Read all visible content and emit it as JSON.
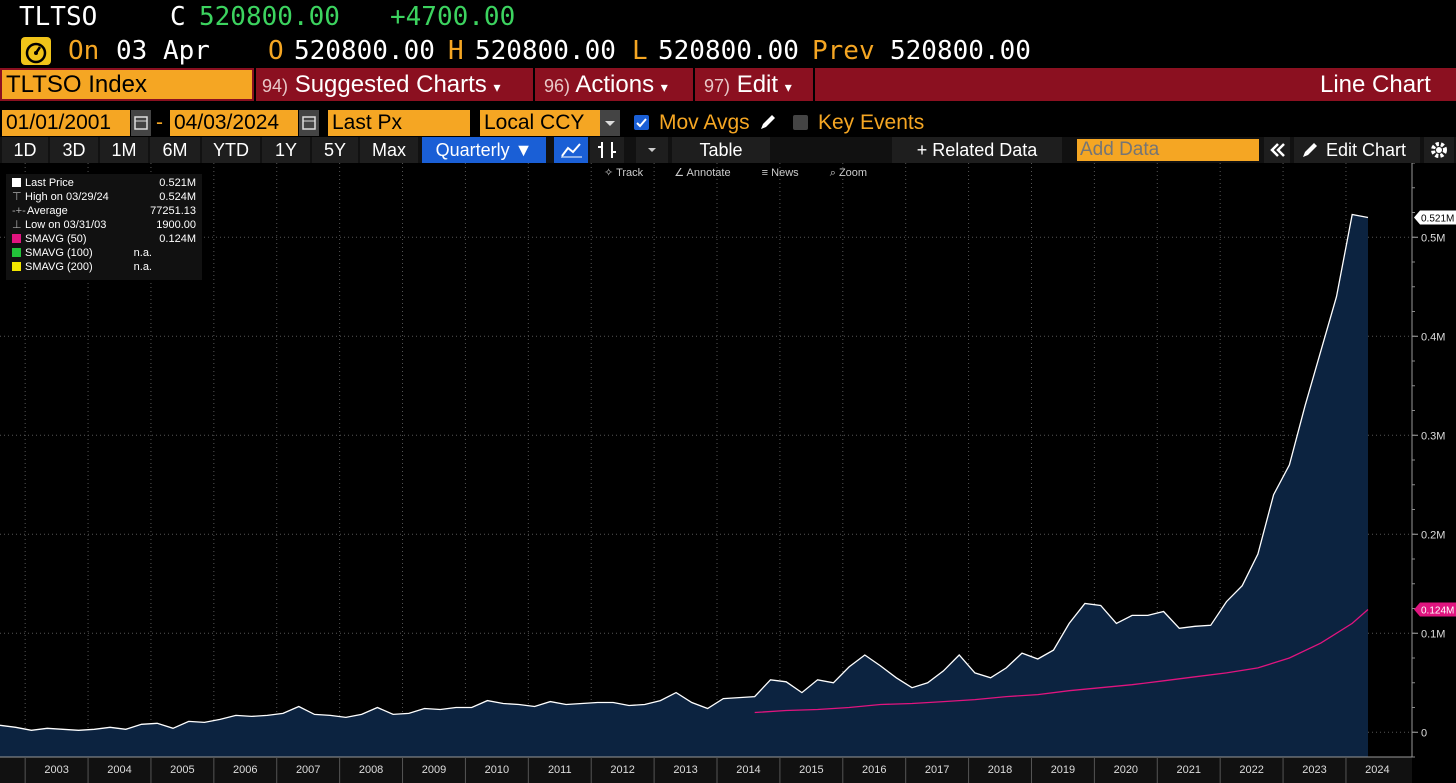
{
  "quote": {
    "ticker": "TLTSO",
    "close_label": "C",
    "close_value": "520800.00",
    "change": "+4700.00",
    "on_label": "On",
    "date": "03 Apr",
    "open_label": "O",
    "open_value": "520800.00",
    "high_label": "H",
    "high_value": "520800.00",
    "low_label": "L",
    "low_value": "520800.00",
    "prev_label": "Prev",
    "prev_value": "520800.00"
  },
  "menubar": {
    "security": "TLTSO Index",
    "suggested_num": "94)",
    "suggested": "Suggested Charts",
    "actions_num": "96)",
    "actions": "Actions",
    "edit_num": "97)",
    "edit": "Edit",
    "chart_type": "Line Chart"
  },
  "controls": {
    "start_date": "01/01/2001",
    "end_date": "04/03/2024",
    "field": "Last Px",
    "currency": "Local CCY",
    "mov_avgs": "Mov Avgs",
    "key_events": "Key Events"
  },
  "toolbar": {
    "periods": [
      "1D",
      "3D",
      "1M",
      "6M",
      "YTD",
      "1Y",
      "5Y",
      "Max"
    ],
    "frequency": "Quarterly ▼",
    "table": "Table",
    "related": "+ Related Data",
    "add_data_placeholder": "Add Data",
    "edit_chart": "Edit Chart"
  },
  "mini_toolbar": [
    "Track",
    "Annotate",
    "News",
    "Zoom"
  ],
  "legend": [
    {
      "label": "Last Price",
      "value": "0.521M",
      "color": "#ffffff"
    },
    {
      "label": "High on 03/29/24",
      "value": "0.524M",
      "color": ""
    },
    {
      "label": "Average",
      "value": "77251.13",
      "color": ""
    },
    {
      "label": "Low on 03/31/03",
      "value": "1900.00",
      "color": ""
    },
    {
      "label": "SMAVG (50)",
      "value": "0.124M",
      "color": "#e0147f"
    },
    {
      "label": "SMAVG (100)",
      "value": "n.a.",
      "color": "#22c33a"
    },
    {
      "label": "SMAVG (200)",
      "value": "n.a.",
      "color": "#f2e600"
    }
  ],
  "chart_data": {
    "type": "area",
    "x_start": 2002.6,
    "x_end": 2025.05,
    "ylim": [
      -25000,
      575000
    ],
    "yticks": [
      0,
      100000,
      200000,
      300000,
      400000,
      500000
    ],
    "ytick_labels": [
      "0",
      "0.1M",
      "0.2M",
      "0.3M",
      "0.4M",
      "0.5M"
    ],
    "xticks": [
      "2003",
      "2004",
      "2005",
      "2006",
      "2007",
      "2008",
      "2009",
      "2010",
      "2011",
      "2012",
      "2013",
      "2014",
      "2015",
      "2016",
      "2017",
      "2018",
      "2019",
      "2020",
      "2021",
      "2022",
      "2023",
      "2024"
    ],
    "last_label": "0.521M",
    "sma_label": "0.124M",
    "series": [
      {
        "name": "Last Price",
        "x": [
          2002.6,
          2002.85,
          2003.1,
          2003.35,
          2003.6,
          2003.85,
          2004.1,
          2004.35,
          2004.6,
          2004.85,
          2005.1,
          2005.35,
          2005.6,
          2005.85,
          2006.1,
          2006.35,
          2006.6,
          2006.85,
          2007.1,
          2007.35,
          2007.6,
          2007.85,
          2008.1,
          2008.35,
          2008.6,
          2008.85,
          2009.1,
          2009.35,
          2009.6,
          2009.85,
          2010.1,
          2010.35,
          2010.6,
          2010.85,
          2011.1,
          2011.35,
          2011.6,
          2011.85,
          2012.1,
          2012.35,
          2012.6,
          2012.85,
          2013.1,
          2013.35,
          2013.6,
          2013.85,
          2014.1,
          2014.35,
          2014.6,
          2014.85,
          2015.1,
          2015.35,
          2015.6,
          2015.85,
          2016.1,
          2016.35,
          2016.6,
          2016.85,
          2017.1,
          2017.35,
          2017.6,
          2017.85,
          2018.1,
          2018.35,
          2018.6,
          2018.85,
          2019.1,
          2019.35,
          2019.6,
          2019.85,
          2020.1,
          2020.35,
          2020.6,
          2020.85,
          2021.1,
          2021.35,
          2021.6,
          2021.85,
          2022.1,
          2022.35,
          2022.6,
          2022.85,
          2023.1,
          2023.35,
          2023.6,
          2023.85,
          2024.1,
          2024.35
        ],
        "values": [
          7000,
          5000,
          2000,
          4000,
          3000,
          2000,
          3000,
          5000,
          3000,
          8000,
          9000,
          4000,
          11000,
          10000,
          13000,
          17000,
          16000,
          17000,
          19000,
          26000,
          18000,
          17000,
          15000,
          18000,
          25000,
          18000,
          19000,
          24000,
          23000,
          25000,
          25000,
          32000,
          29000,
          28000,
          26000,
          31000,
          28000,
          29000,
          30000,
          30000,
          27000,
          28000,
          32000,
          40000,
          30000,
          24000,
          34000,
          35000,
          36000,
          53000,
          51000,
          40000,
          53000,
          50000,
          66000,
          78000,
          67000,
          55000,
          45000,
          50000,
          62000,
          78000,
          60000,
          55000,
          65000,
          80000,
          74000,
          83000,
          110000,
          130000,
          128000,
          110000,
          118000,
          118000,
          122000,
          105000,
          107000,
          108000,
          132000,
          148000,
          180000,
          240000,
          270000,
          330000,
          385000,
          440000,
          523000,
          520000
        ]
      },
      {
        "name": "SMAVG (50)",
        "x": [
          2014.6,
          2015.1,
          2015.6,
          2016.1,
          2016.6,
          2017.1,
          2017.6,
          2018.1,
          2018.6,
          2019.1,
          2019.6,
          2020.1,
          2020.6,
          2021.1,
          2021.6,
          2022.1,
          2022.6,
          2023.1,
          2023.6,
          2024.1,
          2024.35
        ],
        "values": [
          20000,
          22000,
          23000,
          25000,
          28000,
          29000,
          31000,
          33000,
          36000,
          38000,
          42000,
          45000,
          48000,
          52000,
          56000,
          60000,
          65000,
          75000,
          90000,
          110000,
          124000
        ]
      }
    ]
  }
}
